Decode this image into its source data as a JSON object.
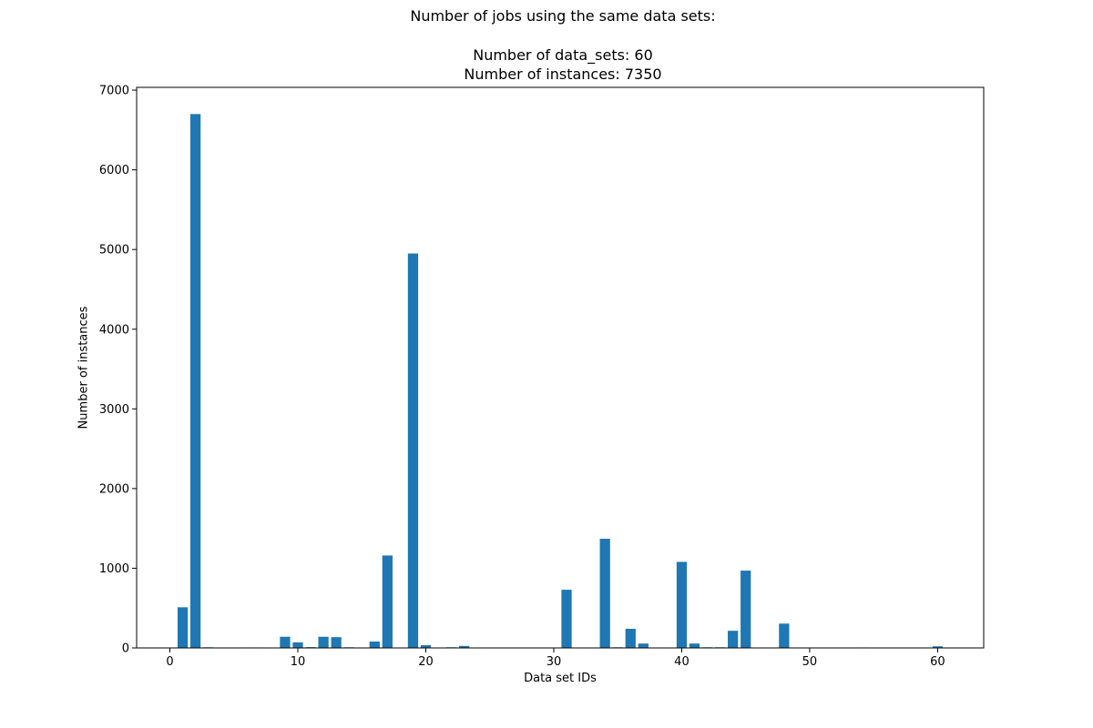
{
  "chart_data": {
    "type": "bar",
    "title_lines": [
      "Number of jobs using the same data sets:",
      "Number of data_sets: 60",
      "Number of instances: 7350"
    ],
    "xlabel": "Data set IDs",
    "ylabel": "Number of instances",
    "xlim": [
      -2.6,
      63.6
    ],
    "ylim": [
      0,
      7035
    ],
    "xticks": [
      0,
      10,
      20,
      30,
      40,
      50,
      60
    ],
    "yticks": [
      0,
      1000,
      2000,
      3000,
      4000,
      5000,
      6000,
      7000
    ],
    "bar_color": "#1f77b4",
    "grid": false,
    "bars": [
      {
        "x": 1,
        "y": 510
      },
      {
        "x": 2,
        "y": 6700
      },
      {
        "x": 3,
        "y": 8
      },
      {
        "x": 6,
        "y": 6
      },
      {
        "x": 7,
        "y": 6
      },
      {
        "x": 9,
        "y": 140
      },
      {
        "x": 10,
        "y": 70
      },
      {
        "x": 11,
        "y": 10
      },
      {
        "x": 12,
        "y": 140
      },
      {
        "x": 13,
        "y": 135
      },
      {
        "x": 14,
        "y": 8
      },
      {
        "x": 16,
        "y": 80
      },
      {
        "x": 17,
        "y": 1160
      },
      {
        "x": 19,
        "y": 4950
      },
      {
        "x": 20,
        "y": 35
      },
      {
        "x": 22,
        "y": 8
      },
      {
        "x": 23,
        "y": 25
      },
      {
        "x": 31,
        "y": 730
      },
      {
        "x": 34,
        "y": 1370
      },
      {
        "x": 35,
        "y": 8
      },
      {
        "x": 36,
        "y": 240
      },
      {
        "x": 37,
        "y": 55
      },
      {
        "x": 40,
        "y": 1080
      },
      {
        "x": 41,
        "y": 55
      },
      {
        "x": 42,
        "y": 8
      },
      {
        "x": 43,
        "y": 8
      },
      {
        "x": 44,
        "y": 215
      },
      {
        "x": 45,
        "y": 970
      },
      {
        "x": 48,
        "y": 305
      },
      {
        "x": 54,
        "y": 6
      },
      {
        "x": 60,
        "y": 20
      }
    ]
  }
}
